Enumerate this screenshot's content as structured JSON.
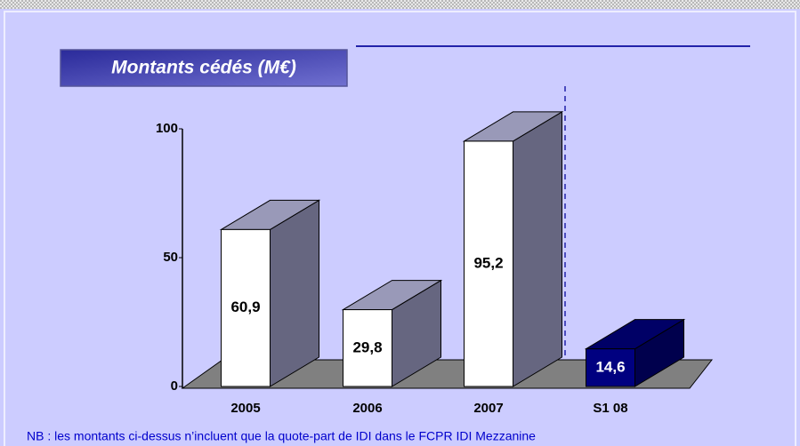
{
  "chart_data": {
    "type": "bar3d",
    "title": "Montants cédés (M€)",
    "categories": [
      "2005",
      "2006",
      "2007",
      "S1 08"
    ],
    "values": [
      60.9,
      29.8,
      95.2,
      14.6
    ],
    "value_labels": [
      "60,9",
      "29,8",
      "95,2",
      "14,6"
    ],
    "colors": [
      "#ffffff",
      "#ffffff",
      "#ffffff",
      "#000080"
    ],
    "ylim": [
      0,
      100
    ],
    "yticks": [
      0,
      50,
      100
    ],
    "note": "NB : les montants ci-dessus n’incluent que la quote-part de IDI dans le FCPR IDI Mezzanine"
  }
}
